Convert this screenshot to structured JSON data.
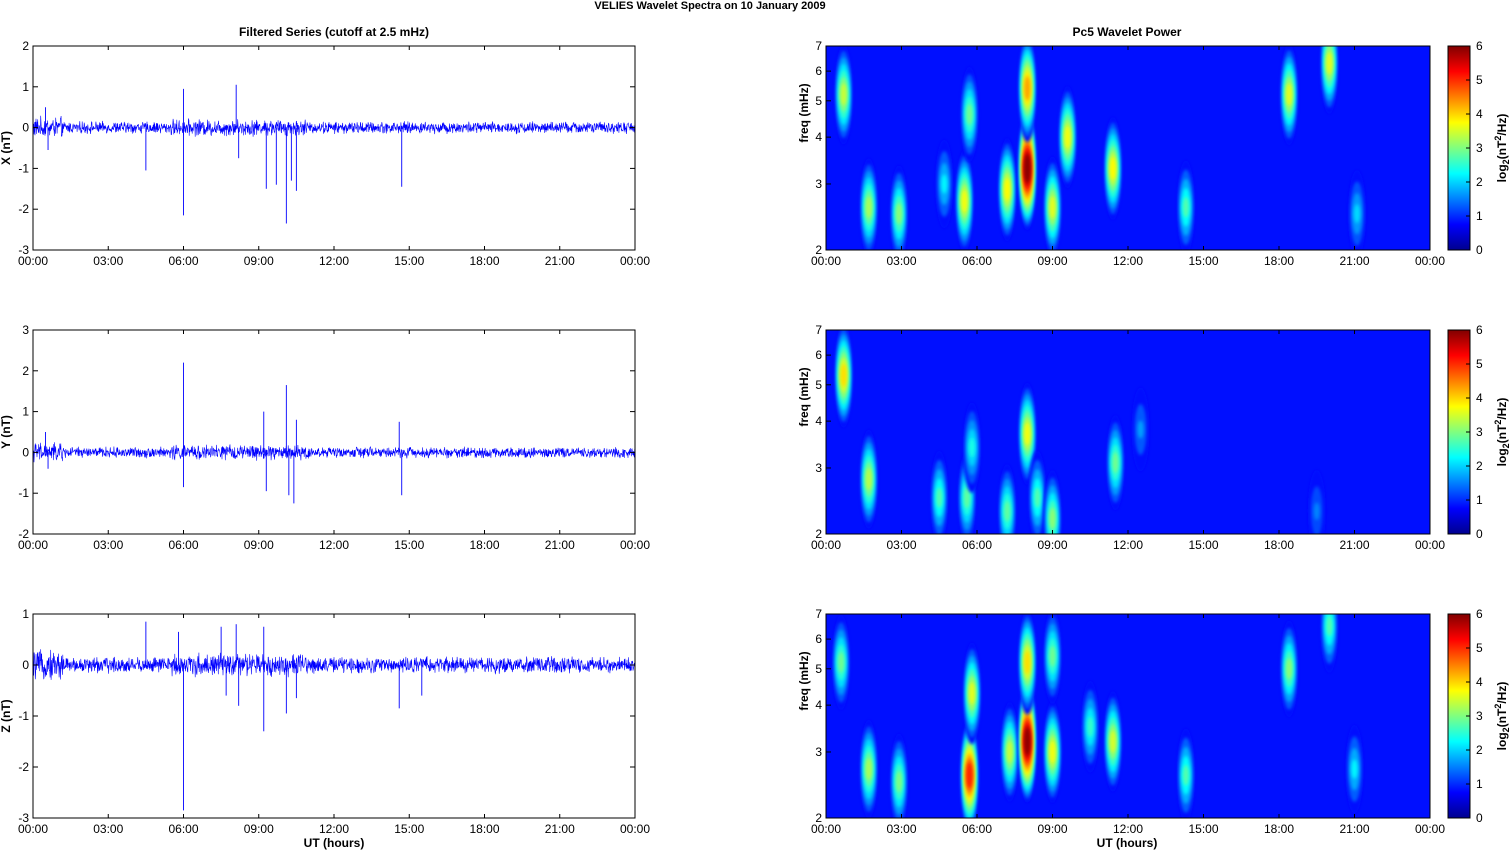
{
  "figure": {
    "suptitle": "VELIES Wavelet Spectra on 10 January   2009",
    "left_title": "Filtered Series (cutoff at 2.5 mHz)",
    "right_title": "Pc5 Wavelet Power",
    "xlabel": "UT (hours)"
  },
  "chart_data": [
    {
      "type": "line",
      "component": "X",
      "ylabel": "X (nT)",
      "xlim": [
        0,
        24
      ],
      "ylim": [
        -3,
        2
      ],
      "yticks": [
        -3,
        -2,
        -1,
        0,
        1,
        2
      ],
      "xtick_labels": [
        "00:00",
        "03:00",
        "06:00",
        "09:00",
        "12:00",
        "15:00",
        "18:00",
        "21:00",
        "00:00"
      ],
      "line_color": "#0000ff",
      "noise_amplitude": 0.11,
      "spikes": [
        {
          "t": 0.5,
          "v": 0.5
        },
        {
          "t": 0.6,
          "v": -0.55
        },
        {
          "t": 4.5,
          "v": -1.05
        },
        {
          "t": 6.0,
          "v": 0.95
        },
        {
          "t": 6.0,
          "v": -2.15
        },
        {
          "t": 8.1,
          "v": 1.05
        },
        {
          "t": 8.2,
          "v": -0.75
        },
        {
          "t": 9.3,
          "v": -1.5
        },
        {
          "t": 9.7,
          "v": -1.4
        },
        {
          "t": 10.1,
          "v": -2.35
        },
        {
          "t": 10.3,
          "v": -1.3
        },
        {
          "t": 10.5,
          "v": -1.55
        },
        {
          "t": 14.7,
          "v": -1.45
        }
      ]
    },
    {
      "type": "line",
      "component": "Y",
      "ylabel": "Y (nT)",
      "xlim": [
        0,
        24
      ],
      "ylim": [
        -2,
        3
      ],
      "yticks": [
        -2,
        -1,
        0,
        1,
        2,
        3
      ],
      "xtick_labels": [
        "00:00",
        "03:00",
        "06:00",
        "09:00",
        "12:00",
        "15:00",
        "18:00",
        "21:00",
        "00:00"
      ],
      "line_color": "#0000ff",
      "noise_amplitude": 0.1,
      "spikes": [
        {
          "t": 0.5,
          "v": 0.5
        },
        {
          "t": 0.6,
          "v": -0.4
        },
        {
          "t": 6.0,
          "v": 2.2
        },
        {
          "t": 6.0,
          "v": -0.85
        },
        {
          "t": 9.2,
          "v": 1.0
        },
        {
          "t": 9.3,
          "v": -0.95
        },
        {
          "t": 10.1,
          "v": 1.65
        },
        {
          "t": 10.2,
          "v": -1.05
        },
        {
          "t": 10.4,
          "v": -1.25
        },
        {
          "t": 10.5,
          "v": 0.8
        },
        {
          "t": 14.6,
          "v": 0.75
        },
        {
          "t": 14.7,
          "v": -1.05
        }
      ]
    },
    {
      "type": "line",
      "component": "Z",
      "ylabel": "Z (nT)",
      "xlim": [
        0,
        24
      ],
      "ylim": [
        -3,
        1
      ],
      "yticks": [
        -3,
        -2,
        -1,
        0,
        1
      ],
      "xtick_labels": [
        "00:00",
        "03:00",
        "06:00",
        "09:00",
        "12:00",
        "15:00",
        "18:00",
        "21:00",
        "00:00"
      ],
      "line_color": "#0000ff",
      "noise_amplitude": 0.12,
      "spikes": [
        {
          "t": 4.5,
          "v": 0.85
        },
        {
          "t": 5.8,
          "v": 0.65
        },
        {
          "t": 6.0,
          "v": -2.85
        },
        {
          "t": 7.5,
          "v": 0.75
        },
        {
          "t": 7.7,
          "v": -0.6
        },
        {
          "t": 8.1,
          "v": 0.8
        },
        {
          "t": 8.2,
          "v": -0.8
        },
        {
          "t": 9.2,
          "v": 0.75
        },
        {
          "t": 9.2,
          "v": -1.3
        },
        {
          "t": 10.1,
          "v": -0.95
        },
        {
          "t": 10.5,
          "v": -0.65
        },
        {
          "t": 14.6,
          "v": -0.85
        },
        {
          "t": 15.5,
          "v": -0.6
        }
      ]
    },
    {
      "type": "heatmap",
      "component": "X",
      "ylabel": "freq (mHz)",
      "xlim": [
        0,
        24
      ],
      "ylim": [
        2,
        7
      ],
      "y_scale": "log",
      "yticks": [
        2,
        3,
        4,
        5,
        6,
        7
      ],
      "xtick_labels": [
        "00:00",
        "03:00",
        "06:00",
        "09:00",
        "12:00",
        "15:00",
        "18:00",
        "21:00",
        "00:00"
      ],
      "colormap": "jet",
      "colorbar": {
        "label": "log2(nT2/Hz)",
        "range": [
          0,
          6
        ],
        "ticks": [
          0,
          1,
          2,
          3,
          4,
          5,
          6
        ]
      },
      "blobs": [
        {
          "t": 0.7,
          "f": 5.2,
          "p": 3.0
        },
        {
          "t": 1.7,
          "f": 2.6,
          "p": 2.8
        },
        {
          "t": 2.9,
          "f": 2.5,
          "p": 2.6
        },
        {
          "t": 4.7,
          "f": 3.0,
          "p": 1.6
        },
        {
          "t": 5.5,
          "f": 2.7,
          "p": 3.3
        },
        {
          "t": 5.7,
          "f": 4.6,
          "p": 2.4
        },
        {
          "t": 7.2,
          "f": 2.9,
          "p": 3.4
        },
        {
          "t": 8.0,
          "f": 3.3,
          "p": 6.0
        },
        {
          "t": 8.0,
          "f": 5.4,
          "p": 4.0
        },
        {
          "t": 9.0,
          "f": 2.6,
          "p": 3.2
        },
        {
          "t": 9.6,
          "f": 4.0,
          "p": 3.3
        },
        {
          "t": 11.4,
          "f": 3.3,
          "p": 3.4
        },
        {
          "t": 14.3,
          "f": 2.6,
          "p": 2.2
        },
        {
          "t": 18.4,
          "f": 5.2,
          "p": 3.2
        },
        {
          "t": 20.0,
          "f": 6.3,
          "p": 3.2
        },
        {
          "t": 21.1,
          "f": 2.5,
          "p": 1.4
        }
      ]
    },
    {
      "type": "heatmap",
      "component": "Y",
      "ylabel": "freq (mHz)",
      "xlim": [
        0,
        24
      ],
      "ylim": [
        2,
        7
      ],
      "y_scale": "log",
      "yticks": [
        2,
        3,
        4,
        5,
        6,
        7
      ],
      "xtick_labels": [
        "00:00",
        "03:00",
        "06:00",
        "09:00",
        "12:00",
        "15:00",
        "18:00",
        "21:00",
        "00:00"
      ],
      "colormap": "jet",
      "colorbar": {
        "label": "log2(nT2/Hz)",
        "range": [
          0,
          6
        ],
        "ticks": [
          0,
          1,
          2,
          3,
          4,
          5,
          6
        ]
      },
      "blobs": [
        {
          "t": 0.7,
          "f": 5.3,
          "p": 3.6
        },
        {
          "t": 1.7,
          "f": 2.8,
          "p": 2.9
        },
        {
          "t": 4.5,
          "f": 2.5,
          "p": 2.2
        },
        {
          "t": 5.6,
          "f": 2.5,
          "p": 2.3
        },
        {
          "t": 5.8,
          "f": 3.4,
          "p": 1.8
        },
        {
          "t": 7.2,
          "f": 2.3,
          "p": 2.3
        },
        {
          "t": 8.0,
          "f": 3.7,
          "p": 3.3
        },
        {
          "t": 8.4,
          "f": 2.5,
          "p": 2.2
        },
        {
          "t": 9.0,
          "f": 2.2,
          "p": 2.6
        },
        {
          "t": 11.5,
          "f": 3.1,
          "p": 2.4
        },
        {
          "t": 12.5,
          "f": 3.8,
          "p": 1.0
        },
        {
          "t": 19.5,
          "f": 2.3,
          "p": 0.8
        }
      ]
    },
    {
      "type": "heatmap",
      "component": "Z",
      "ylabel": "freq (mHz)",
      "xlim": [
        0,
        24
      ],
      "ylim": [
        2,
        7
      ],
      "y_scale": "log",
      "yticks": [
        2,
        3,
        4,
        5,
        6,
        7
      ],
      "xtick_labels": [
        "00:00",
        "03:00",
        "06:00",
        "09:00",
        "12:00",
        "15:00",
        "18:00",
        "21:00",
        "00:00"
      ],
      "colormap": "jet",
      "colorbar": {
        "label": "log2(nT2/Hz)",
        "range": [
          0,
          6
        ],
        "ticks": [
          0,
          1,
          2,
          3,
          4,
          5,
          6
        ]
      },
      "blobs": [
        {
          "t": 0.6,
          "f": 5.2,
          "p": 2.4
        },
        {
          "t": 1.7,
          "f": 2.7,
          "p": 2.8
        },
        {
          "t": 2.9,
          "f": 2.5,
          "p": 2.5
        },
        {
          "t": 5.7,
          "f": 2.6,
          "p": 4.9
        },
        {
          "t": 5.8,
          "f": 4.3,
          "p": 3.2
        },
        {
          "t": 7.3,
          "f": 3.0,
          "p": 3.0
        },
        {
          "t": 8.0,
          "f": 3.2,
          "p": 5.9
        },
        {
          "t": 8.0,
          "f": 5.2,
          "p": 3.6
        },
        {
          "t": 9.0,
          "f": 3.0,
          "p": 3.3
        },
        {
          "t": 9.0,
          "f": 5.4,
          "p": 2.4
        },
        {
          "t": 10.5,
          "f": 3.5,
          "p": 2.0
        },
        {
          "t": 11.4,
          "f": 3.2,
          "p": 3.1
        },
        {
          "t": 14.3,
          "f": 2.6,
          "p": 2.2
        },
        {
          "t": 18.4,
          "f": 5.0,
          "p": 2.6
        },
        {
          "t": 20.0,
          "f": 6.5,
          "p": 2.2
        },
        {
          "t": 21.0,
          "f": 2.7,
          "p": 1.6
        }
      ]
    }
  ]
}
